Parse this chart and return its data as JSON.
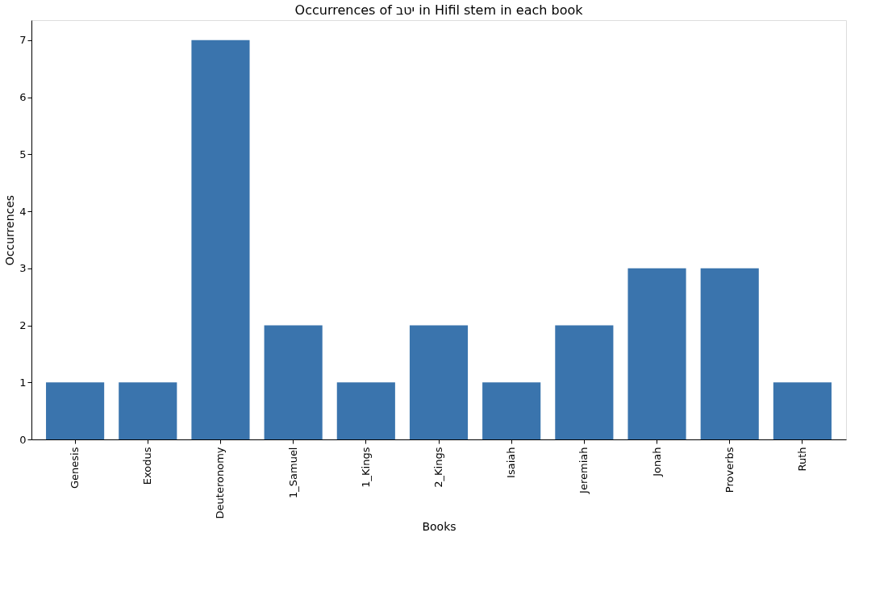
{
  "chart_data": {
    "type": "bar",
    "title": "Occurrences of יטב in Hifil stem in each book",
    "xlabel": "Books",
    "ylabel": "Occurrences",
    "categories": [
      "Genesis",
      "Exodus",
      "Deuteronomy",
      "1_Samuel",
      "1_Kings",
      "2_Kings",
      "Isaiah",
      "Jeremiah",
      "Jonah",
      "Proverbs",
      "Ruth"
    ],
    "values": [
      1,
      1,
      7,
      2,
      1,
      2,
      1,
      2,
      3,
      3,
      1
    ],
    "color": "#3a74ad",
    "ylim": [
      0,
      7.35
    ],
    "yticks": [
      0,
      1,
      2,
      3,
      4,
      5,
      6,
      7
    ],
    "grid": false
  }
}
